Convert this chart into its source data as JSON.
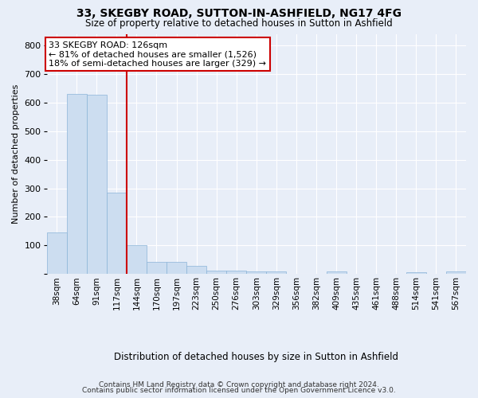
{
  "title": "33, SKEGBY ROAD, SUTTON-IN-ASHFIELD, NG17 4FG",
  "subtitle": "Size of property relative to detached houses in Sutton in Ashfield",
  "xlabel": "Distribution of detached houses by size in Sutton in Ashfield",
  "ylabel": "Number of detached properties",
  "footer1": "Contains HM Land Registry data © Crown copyright and database right 2024.",
  "footer2": "Contains public sector information licensed under the Open Government Licence v3.0.",
  "annotation_line1": "33 SKEGBY ROAD: 126sqm",
  "annotation_line2": "← 81% of detached houses are smaller (1,526)",
  "annotation_line3": "18% of semi-detached houses are larger (329) →",
  "bar_color": "#ccddf0",
  "bar_edge_color": "#8ab4d8",
  "vline_color": "#cc0000",
  "background_color": "#e8eef8",
  "categories": [
    "38sqm",
    "64sqm",
    "91sqm",
    "117sqm",
    "144sqm",
    "170sqm",
    "197sqm",
    "223sqm",
    "250sqm",
    "276sqm",
    "303sqm",
    "329sqm",
    "356sqm",
    "382sqm",
    "409sqm",
    "435sqm",
    "461sqm",
    "488sqm",
    "514sqm",
    "541sqm",
    "567sqm"
  ],
  "values": [
    147,
    630,
    628,
    285,
    102,
    44,
    43,
    28,
    12,
    12,
    10,
    10,
    0,
    0,
    8,
    0,
    0,
    0,
    7,
    0,
    8
  ],
  "ylim": [
    0,
    840
  ],
  "yticks": [
    0,
    100,
    200,
    300,
    400,
    500,
    600,
    700,
    800
  ],
  "grid_color": "#ffffff",
  "annotation_box_facecolor": "#ffffff",
  "annotation_box_edgecolor": "#cc0000",
  "vline_bar_index": 3.5
}
